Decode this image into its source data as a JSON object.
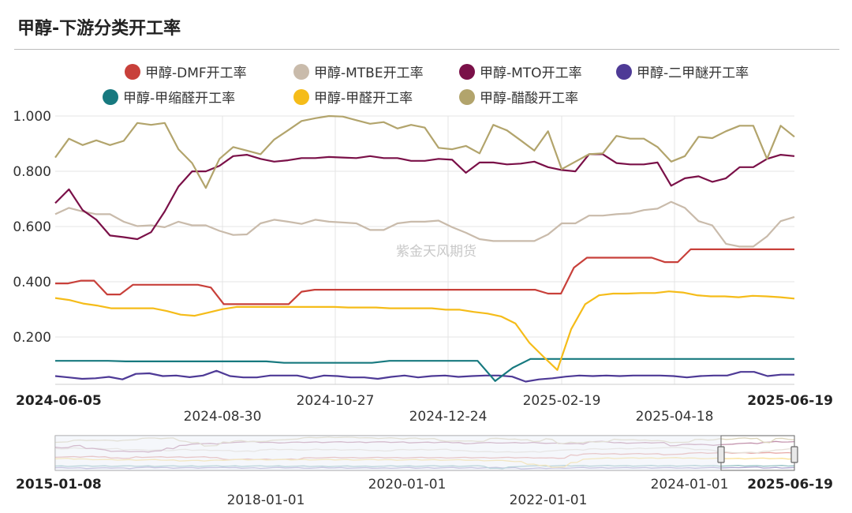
{
  "title": "甲醇-下游分类开工率",
  "watermark": "紫金天风期货",
  "legend": [
    {
      "name": "甲醇-DMF开工率",
      "color": "#c8403a"
    },
    {
      "name": "甲醇-MTBE开工率",
      "color": "#c9bbab"
    },
    {
      "name": "甲醇-MTO开工率",
      "color": "#7a1048"
    },
    {
      "name": "甲醇-二甲醚开工率",
      "color": "#4e3a96"
    },
    {
      "name": "甲醇-甲缩醛开工率",
      "color": "#17797f"
    },
    {
      "name": "甲醇-甲醛开工率",
      "color": "#f5bc19"
    },
    {
      "name": "甲醇-醋酸开工率",
      "color": "#b2a46c"
    }
  ],
  "chart_data": {
    "type": "line",
    "title": "甲醇-下游分类开工率",
    "xlabel": "",
    "ylabel": "",
    "ylim": [
      0.03,
      1.0
    ],
    "y_ticks": [
      "1.000",
      "0.800",
      "0.600",
      "0.400",
      "0.200"
    ],
    "x_start_label": "2024-06-05",
    "x_end_label": "2025-06-19",
    "x_tick_labels": [
      "2024-08-30",
      "2024-10-27",
      "2024-12-24",
      "2025-02-19",
      "2025-04-18"
    ],
    "series": [
      {
        "name": "甲醇-DMF开工率",
        "color": "#c8403a",
        "values": [
          0.395,
          0.395,
          0.405,
          0.405,
          0.355,
          0.355,
          0.39,
          0.39,
          0.39,
          0.39,
          0.39,
          0.39,
          0.38,
          0.32,
          0.32,
          0.32,
          0.32,
          0.32,
          0.32,
          0.365,
          0.372,
          0.372,
          0.372,
          0.372,
          0.372,
          0.372,
          0.372,
          0.372,
          0.372,
          0.372,
          0.372,
          0.372,
          0.372,
          0.372,
          0.372,
          0.372,
          0.372,
          0.372,
          0.358,
          0.358,
          0.452,
          0.488,
          0.488,
          0.488,
          0.488,
          0.488,
          0.488,
          0.472,
          0.472,
          0.518,
          0.518,
          0.518,
          0.518,
          0.518,
          0.518,
          0.518,
          0.518,
          0.518
        ]
      },
      {
        "name": "甲醇-MTBE开工率",
        "color": "#c9bbab",
        "values": [
          0.645,
          0.668,
          0.655,
          0.645,
          0.645,
          0.618,
          0.602,
          0.605,
          0.598,
          0.618,
          0.605,
          0.605,
          0.585,
          0.57,
          0.572,
          0.612,
          0.625,
          0.618,
          0.61,
          0.625,
          0.618,
          0.615,
          0.612,
          0.588,
          0.588,
          0.612,
          0.618,
          0.618,
          0.622,
          0.598,
          0.578,
          0.555,
          0.548,
          0.548,
          0.548,
          0.548,
          0.572,
          0.612,
          0.612,
          0.64,
          0.64,
          0.645,
          0.648,
          0.66,
          0.665,
          0.69,
          0.668,
          0.62,
          0.605,
          0.538,
          0.528,
          0.528,
          0.565,
          0.62,
          0.635
        ]
      },
      {
        "name": "甲醇-MTO开工率",
        "color": "#7a1048",
        "values": [
          0.685,
          0.735,
          0.66,
          0.625,
          0.568,
          0.562,
          0.555,
          0.58,
          0.655,
          0.745,
          0.8,
          0.8,
          0.82,
          0.855,
          0.86,
          0.845,
          0.835,
          0.84,
          0.848,
          0.848,
          0.852,
          0.85,
          0.848,
          0.855,
          0.848,
          0.848,
          0.838,
          0.838,
          0.845,
          0.842,
          0.795,
          0.832,
          0.832,
          0.825,
          0.828,
          0.835,
          0.815,
          0.805,
          0.8,
          0.862,
          0.862,
          0.83,
          0.825,
          0.825,
          0.832,
          0.748,
          0.775,
          0.782,
          0.762,
          0.775,
          0.815,
          0.815,
          0.845,
          0.86,
          0.855
        ]
      },
      {
        "name": "甲醇-二甲醚开工率",
        "color": "#4e3a96",
        "values": [
          0.06,
          0.055,
          0.05,
          0.052,
          0.057,
          0.048,
          0.068,
          0.07,
          0.06,
          0.062,
          0.056,
          0.062,
          0.079,
          0.06,
          0.055,
          0.055,
          0.062,
          0.062,
          0.062,
          0.052,
          0.062,
          0.06,
          0.055,
          0.055,
          0.05,
          0.057,
          0.062,
          0.055,
          0.06,
          0.062,
          0.057,
          0.06,
          0.062,
          0.062,
          0.058,
          0.04,
          0.048,
          0.052,
          0.058,
          0.062,
          0.06,
          0.062,
          0.06,
          0.062,
          0.062,
          0.062,
          0.06,
          0.055,
          0.06,
          0.062,
          0.062,
          0.075,
          0.075,
          0.06,
          0.065,
          0.065
        ]
      },
      {
        "name": "甲醇-甲缩醛开工率",
        "color": "#17797f",
        "values": [
          0.115,
          0.115,
          0.115,
          0.115,
          0.113,
          0.113,
          0.113,
          0.113,
          0.113,
          0.113,
          0.113,
          0.113,
          0.113,
          0.108,
          0.108,
          0.108,
          0.108,
          0.108,
          0.108,
          0.115,
          0.115,
          0.115,
          0.115,
          0.115,
          0.115,
          0.042,
          0.09,
          0.122,
          0.122,
          0.122,
          0.122,
          0.122,
          0.122,
          0.122,
          0.122,
          0.122,
          0.122,
          0.122,
          0.122,
          0.122,
          0.122,
          0.122,
          0.122
        ]
      },
      {
        "name": "甲醇-甲醛开工率",
        "color": "#f5bc19",
        "values": [
          0.342,
          0.335,
          0.322,
          0.315,
          0.305,
          0.305,
          0.305,
          0.305,
          0.295,
          0.282,
          0.278,
          0.29,
          0.302,
          0.31,
          0.31,
          0.31,
          0.31,
          0.31,
          0.31,
          0.31,
          0.31,
          0.308,
          0.308,
          0.308,
          0.305,
          0.305,
          0.305,
          0.305,
          0.3,
          0.3,
          0.292,
          0.286,
          0.275,
          0.25,
          0.18,
          0.13,
          0.082,
          0.23,
          0.32,
          0.352,
          0.358,
          0.358,
          0.36,
          0.36,
          0.366,
          0.362,
          0.352,
          0.348,
          0.348,
          0.345,
          0.35,
          0.348,
          0.345,
          0.34
        ]
      },
      {
        "name": "甲醇-醋酸开工率",
        "color": "#b2a46c",
        "values": [
          0.85,
          0.918,
          0.895,
          0.912,
          0.895,
          0.91,
          0.975,
          0.968,
          0.975,
          0.88,
          0.83,
          0.74,
          0.845,
          0.888,
          0.875,
          0.862,
          0.915,
          0.948,
          0.982,
          0.992,
          1.0,
          0.998,
          0.985,
          0.972,
          0.978,
          0.955,
          0.968,
          0.958,
          0.885,
          0.88,
          0.892,
          0.865,
          0.968,
          0.948,
          0.912,
          0.875,
          0.945,
          0.808,
          0.835,
          0.862,
          0.865,
          0.928,
          0.918,
          0.918,
          0.888,
          0.835,
          0.855,
          0.925,
          0.92,
          0.945,
          0.965,
          0.965,
          0.845,
          0.965,
          0.925
        ]
      }
    ],
    "navigator": {
      "start_label": "2015-01-08",
      "end_label": "2025-06-19",
      "tick_labels_upper": [
        "2020-01-01",
        "2024-01-01"
      ],
      "tick_labels_lower": [
        "2018-01-01",
        "2022-01-01"
      ]
    }
  }
}
